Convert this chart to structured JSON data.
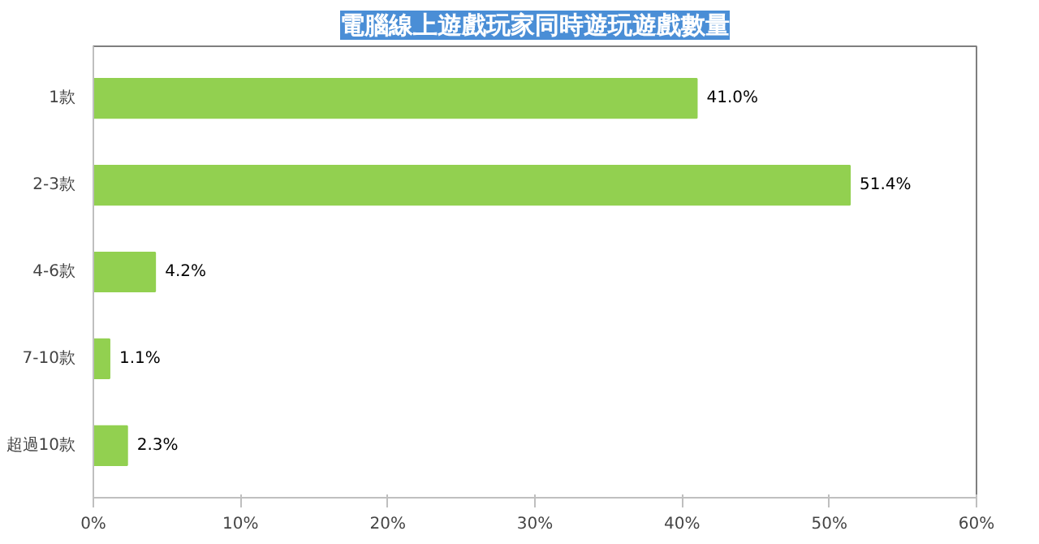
{
  "chart_data": {
    "type": "bar",
    "orientation": "horizontal",
    "title": "電腦線上遊戲玩家同時遊玩遊戲數量",
    "categories": [
      "1款",
      "2-3款",
      "4-6款",
      "7-10款",
      "超過10款"
    ],
    "values": [
      41.0,
      51.4,
      4.2,
      1.1,
      2.3
    ],
    "value_labels": [
      "41.0%",
      "51.4%",
      "4.2%",
      "1.1%",
      "2.3%"
    ],
    "color": "#92d050",
    "xlim": [
      0,
      60
    ],
    "xticks": [
      {
        "value": 0,
        "label": "0%"
      },
      {
        "value": 10,
        "label": "10%"
      },
      {
        "value": 20,
        "label": "20%"
      },
      {
        "value": 30,
        "label": "30%"
      },
      {
        "value": 40,
        "label": "40%"
      },
      {
        "value": 50,
        "label": "50%"
      },
      {
        "value": 60,
        "label": "60%"
      }
    ],
    "grid": false
  }
}
